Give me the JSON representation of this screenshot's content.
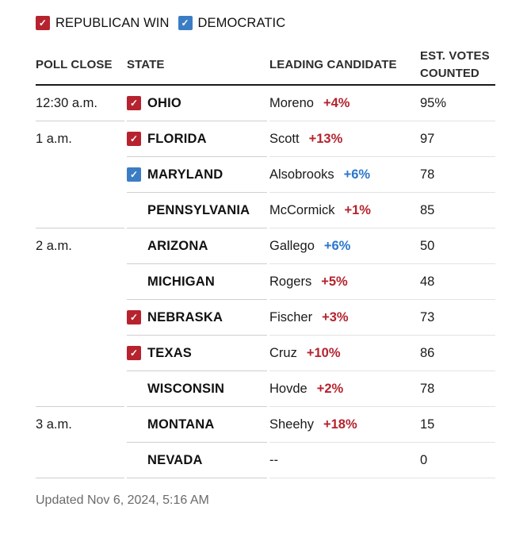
{
  "colors": {
    "republican_check": "#b6232e",
    "democratic_check": "#3b7dc4",
    "republican_text": "#b5232e",
    "democratic_text": "#2a76cc",
    "header_rule": "#1a1a1a",
    "row_separator": "#d6d6d6",
    "footer_text": "#6b6b6b"
  },
  "legend": {
    "check_glyph": "✓",
    "republican_label": "REPUBLICAN WIN",
    "democratic_label": "DEMOCRATIC"
  },
  "table": {
    "headers": {
      "poll_close": "POLL CLOSE",
      "state": "STATE",
      "leading_candidate": "LEADING CANDIDATE",
      "est_votes": "EST. VOTES COUNTED"
    },
    "rows": [
      {
        "poll_close": "12:30 a.m.",
        "group_start": true,
        "win": "republican",
        "state": "OHIO",
        "candidate": "Moreno",
        "margin": "+4%",
        "margin_party": "republican",
        "votes": "95%"
      },
      {
        "poll_close": "1 a.m.",
        "group_start": true,
        "win": "republican",
        "state": "FLORIDA",
        "candidate": "Scott",
        "margin": "+13%",
        "margin_party": "republican",
        "votes": "97"
      },
      {
        "poll_close": "",
        "win": "democratic",
        "state": "MARYLAND",
        "candidate": "Alsobrooks",
        "margin": "+6%",
        "margin_party": "democratic",
        "votes": "78"
      },
      {
        "poll_close": "",
        "state": "PENNSYLVANIA",
        "candidate": "McCormick",
        "margin": "+1%",
        "margin_party": "republican",
        "votes": "85"
      },
      {
        "poll_close": "2 a.m.",
        "group_start": true,
        "state": "ARIZONA",
        "candidate": "Gallego",
        "margin": "+6%",
        "margin_party": "democratic",
        "votes": "50"
      },
      {
        "poll_close": "",
        "state": "MICHIGAN",
        "candidate": "Rogers",
        "margin": "+5%",
        "margin_party": "republican",
        "votes": "48"
      },
      {
        "poll_close": "",
        "win": "republican",
        "state": "NEBRASKA",
        "candidate": "Fischer",
        "margin": "+3%",
        "margin_party": "republican",
        "votes": "73"
      },
      {
        "poll_close": "",
        "win": "republican",
        "state": "TEXAS",
        "candidate": "Cruz",
        "margin": "+10%",
        "margin_party": "republican",
        "votes": "86"
      },
      {
        "poll_close": "",
        "state": "WISCONSIN",
        "candidate": "Hovde",
        "margin": "+2%",
        "margin_party": "republican",
        "votes": "78"
      },
      {
        "poll_close": "3 a.m.",
        "group_start": true,
        "state": "MONTANA",
        "candidate": "Sheehy",
        "margin": "+18%",
        "margin_party": "republican",
        "votes": "15"
      },
      {
        "poll_close": "",
        "state": "NEVADA",
        "candidate": "--",
        "margin": "",
        "votes": "0"
      }
    ]
  },
  "footer": {
    "updated": "Updated Nov 6, 2024, 5:16 AM"
  },
  "chart_data": {
    "type": "table",
    "title": "",
    "legend": [
      "REPUBLICAN WIN",
      "DEMOCRATIC"
    ],
    "columns": [
      "POLL CLOSE",
      "STATE",
      "LEADING CANDIDATE",
      "EST. VOTES COUNTED"
    ],
    "rows": [
      [
        "12:30 a.m.",
        "OHIO",
        "Moreno +4% (R, win)",
        "95%"
      ],
      [
        "1 a.m.",
        "FLORIDA",
        "Scott +13% (R, win)",
        "97"
      ],
      [
        "1 a.m.",
        "MARYLAND",
        "Alsobrooks +6% (D, win)",
        "78"
      ],
      [
        "1 a.m.",
        "PENNSYLVANIA",
        "McCormick +1% (R)",
        "85"
      ],
      [
        "2 a.m.",
        "ARIZONA",
        "Gallego +6% (D)",
        "50"
      ],
      [
        "2 a.m.",
        "MICHIGAN",
        "Rogers +5% (R)",
        "48"
      ],
      [
        "2 a.m.",
        "NEBRASKA",
        "Fischer +3% (R, win)",
        "73"
      ],
      [
        "2 a.m.",
        "TEXAS",
        "Cruz +10% (R, win)",
        "86"
      ],
      [
        "2 a.m.",
        "WISCONSIN",
        "Hovde +2% (R)",
        "78"
      ],
      [
        "3 a.m.",
        "MONTANA",
        "Sheehy +18% (R)",
        "15"
      ],
      [
        "3 a.m.",
        "NEVADA",
        "--",
        "0"
      ]
    ],
    "note": "Updated Nov 6, 2024, 5:16 AM"
  }
}
